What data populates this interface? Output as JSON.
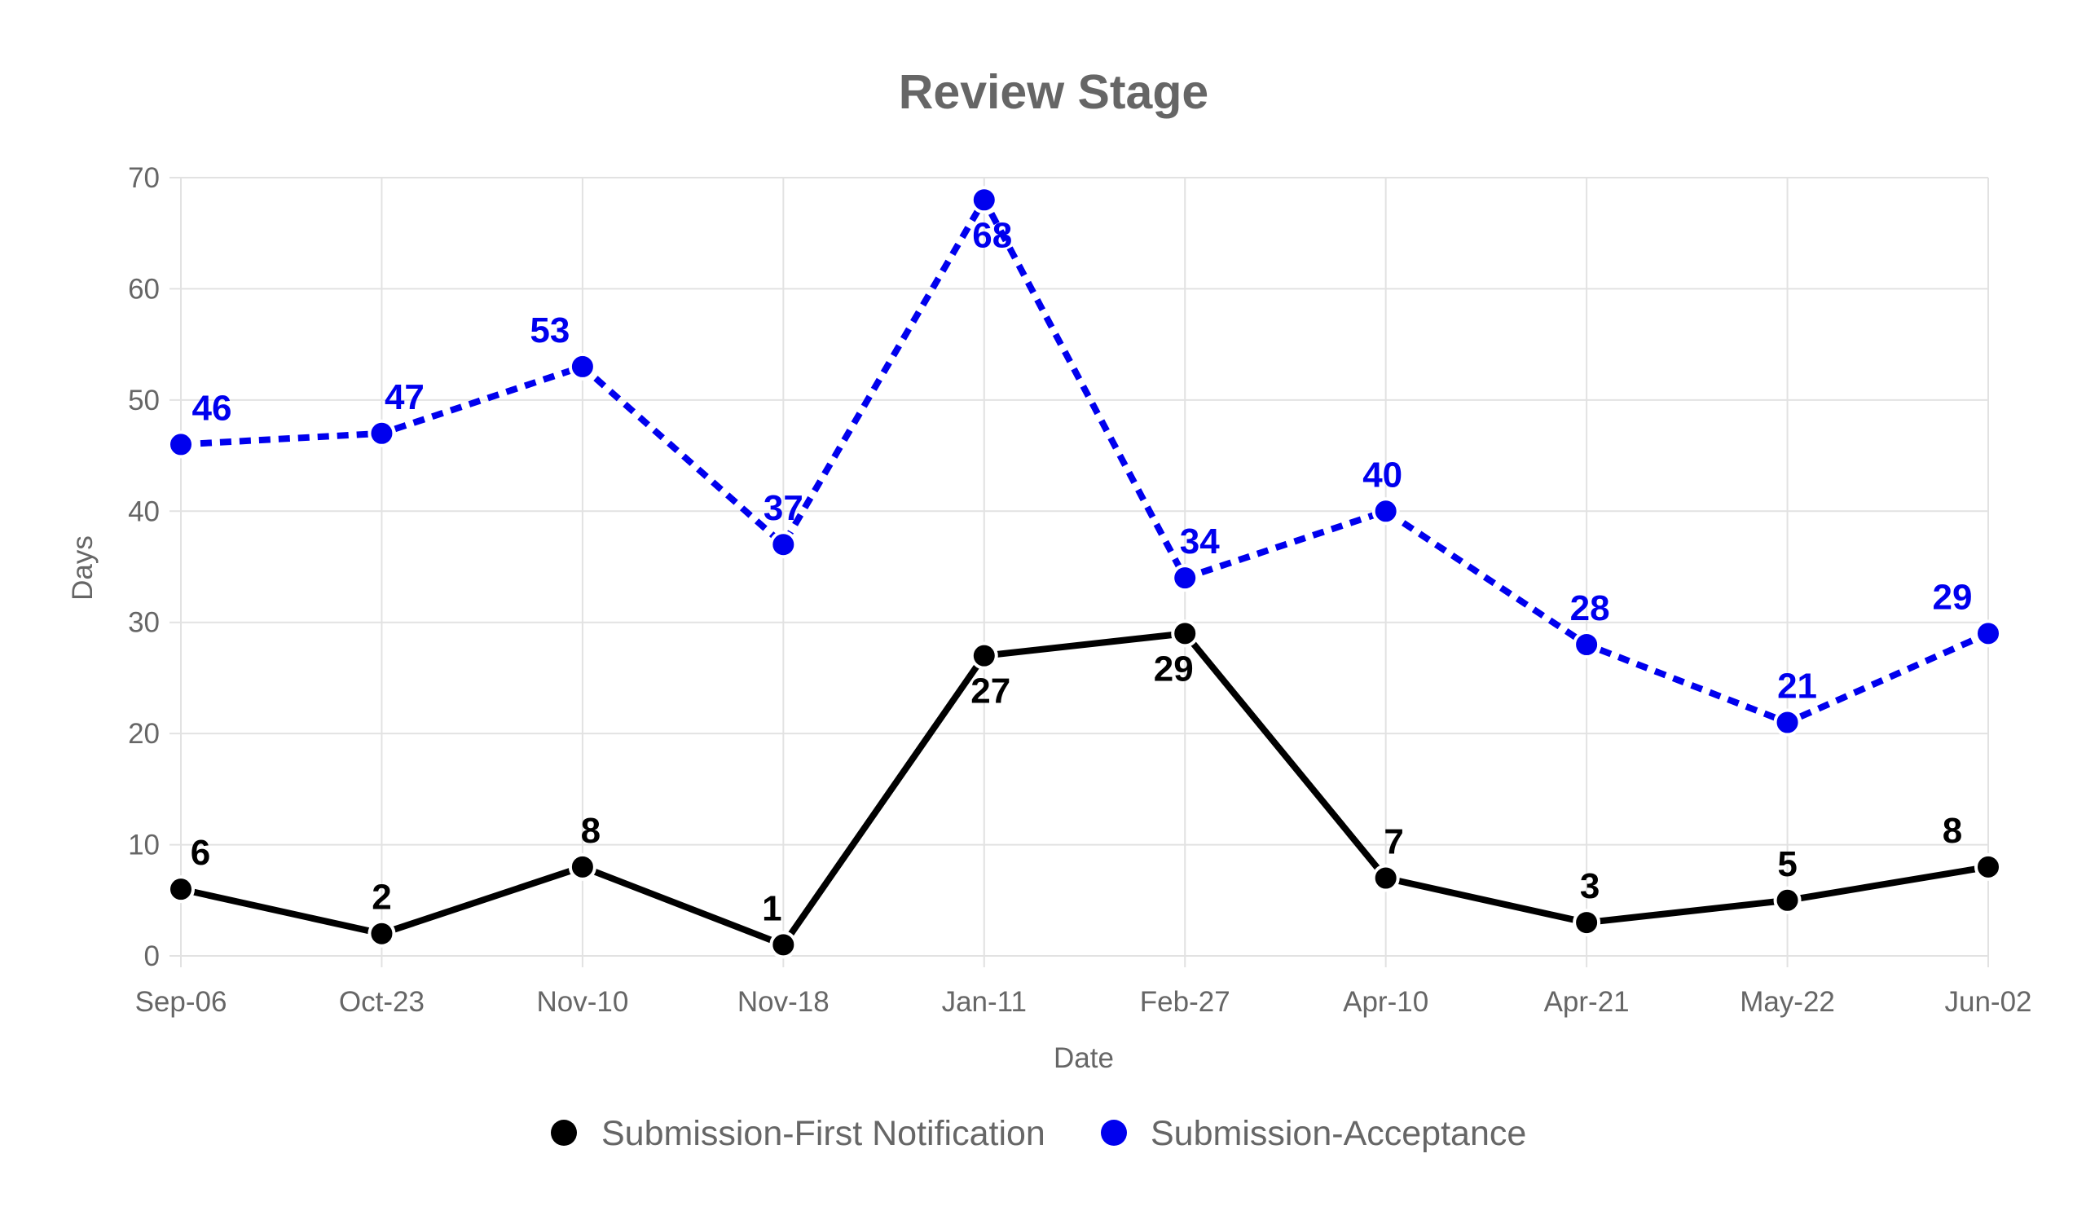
{
  "chart_data": {
    "type": "line",
    "title": "Review Stage",
    "xlabel": "Date",
    "ylabel": "Days",
    "ylim": [
      0,
      70
    ],
    "yticks": [
      0,
      10,
      20,
      30,
      40,
      50,
      60,
      70
    ],
    "grid": true,
    "legend_position": "bottom",
    "categories": [
      "Sep-06",
      "Oct-23",
      "Nov-10",
      "Nov-18",
      "Jan-11",
      "Feb-27",
      "Apr-10",
      "Apr-21",
      "May-22",
      "Jun-02"
    ],
    "series": [
      {
        "name": "Submission-First Notification",
        "color": "#000000",
        "line_style": "solid",
        "values": [
          6,
          2,
          8,
          1,
          27,
          29,
          7,
          3,
          5,
          8
        ]
      },
      {
        "name": "Submission-Acceptance",
        "color": "#0000ee",
        "line_style": "dashed",
        "values": [
          46,
          47,
          53,
          37,
          68,
          34,
          40,
          28,
          21,
          29
        ]
      }
    ]
  }
}
